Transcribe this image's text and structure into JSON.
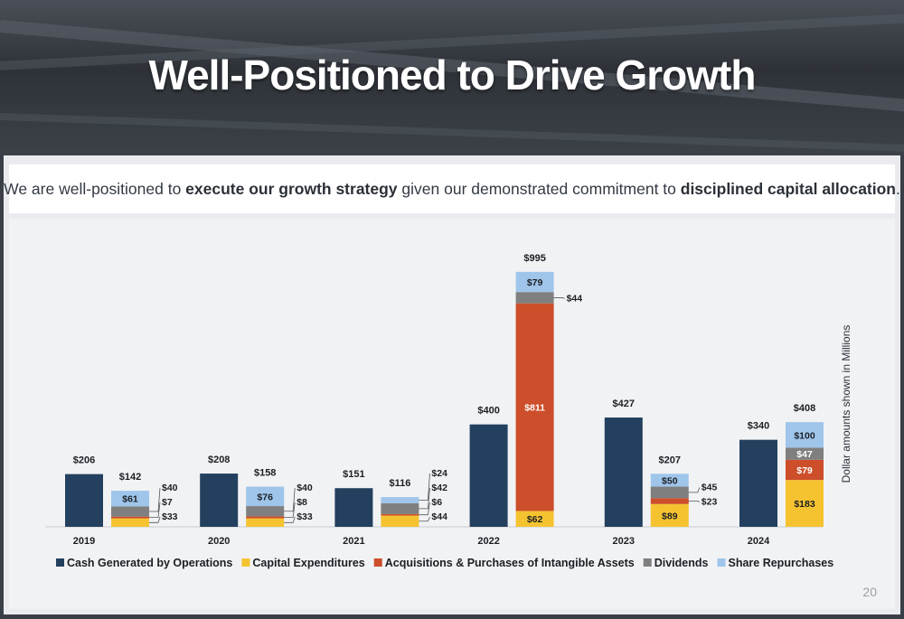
{
  "title": "Well-Positioned to Drive Growth",
  "subtitle": {
    "t1": "We are well-positioned to ",
    "b1": "execute our growth strategy",
    "t2": " given our demonstrated commitment to ",
    "b2": "disciplined capital allocation",
    "t3": "."
  },
  "page_number": "20",
  "colors": {
    "cash": "#23405e",
    "capex": "#f5c330",
    "acq": "#cc4e2a",
    "div": "#7f7f7f",
    "rep": "#9fc5ea"
  },
  "chart_data": {
    "type": "bar",
    "ylabel": "Dollar amounts shown in Millions",
    "categories": [
      "2019",
      "2020",
      "2021",
      "2022",
      "2023",
      "2024"
    ],
    "series": [
      {
        "name": "Cash Generated by Operations",
        "key": "cash",
        "values": [
          206,
          208,
          151,
          400,
          427,
          340
        ],
        "labels": [
          "$206",
          "$208",
          "$151",
          "$400",
          "$427",
          "$340"
        ]
      },
      {
        "name": "Capital Expenditures",
        "key": "capex",
        "values": [
          33,
          33,
          44,
          62,
          89,
          183
        ],
        "labels": [
          "$33",
          "$33",
          "$44",
          "$62",
          "$89",
          "$183"
        ]
      },
      {
        "name": "Acquisitions & Purchases of Intangible Assets",
        "key": "acq",
        "values": [
          7,
          8,
          6,
          811,
          23,
          79
        ],
        "labels": [
          "$7",
          "$8",
          "$6",
          "$811",
          "$23",
          "$79"
        ]
      },
      {
        "name": "Dividends",
        "key": "div",
        "values": [
          40,
          40,
          42,
          44,
          45,
          47
        ],
        "labels": [
          "$40",
          "$40",
          "$42",
          "$44",
          "$45",
          "$47"
        ]
      },
      {
        "name": "Share Repurchases",
        "key": "rep",
        "values": [
          61,
          76,
          24,
          79,
          50,
          100
        ],
        "labels": [
          "$61",
          "$76",
          "$24",
          "$79",
          "$50",
          "$100"
        ]
      }
    ],
    "totals": [
      "$142",
      "$158",
      "$116",
      "$995",
      "$207",
      "$408"
    ],
    "legend_position": "bottom"
  }
}
